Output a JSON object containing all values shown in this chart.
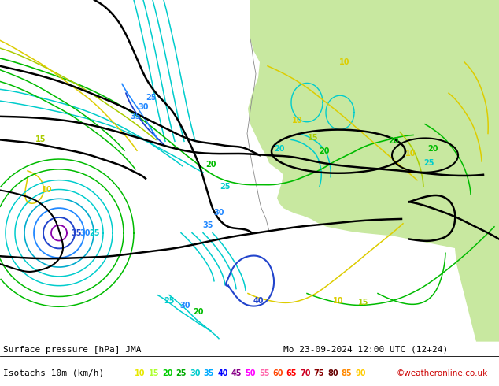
{
  "title_left": "Surface pressure [hPa] JMA",
  "title_right": "Mo 23-09-2024 12:00 UTC (12+24)",
  "subtitle_left": "Isotachs 10m (km/h)",
  "copyright": "©weatheronline.co.uk",
  "bg_color": "#d2d2d2",
  "land_color": "#c8e8a0",
  "coast_color": "#888888",
  "figsize": [
    6.34,
    4.9
  ],
  "dpi": 100,
  "legend_values": [
    10,
    15,
    20,
    25,
    30,
    35,
    40,
    45,
    50,
    55,
    60,
    65,
    70,
    75,
    80,
    85,
    90
  ],
  "legend_colors": [
    "#e8e800",
    "#adff2f",
    "#00cc00",
    "#00aa00",
    "#00cccc",
    "#00aaff",
    "#0000ff",
    "#880088",
    "#ff00ff",
    "#ff66aa",
    "#ff4400",
    "#ff0000",
    "#cc0022",
    "#880000",
    "#660000",
    "#ff8800",
    "#ffcc00"
  ]
}
